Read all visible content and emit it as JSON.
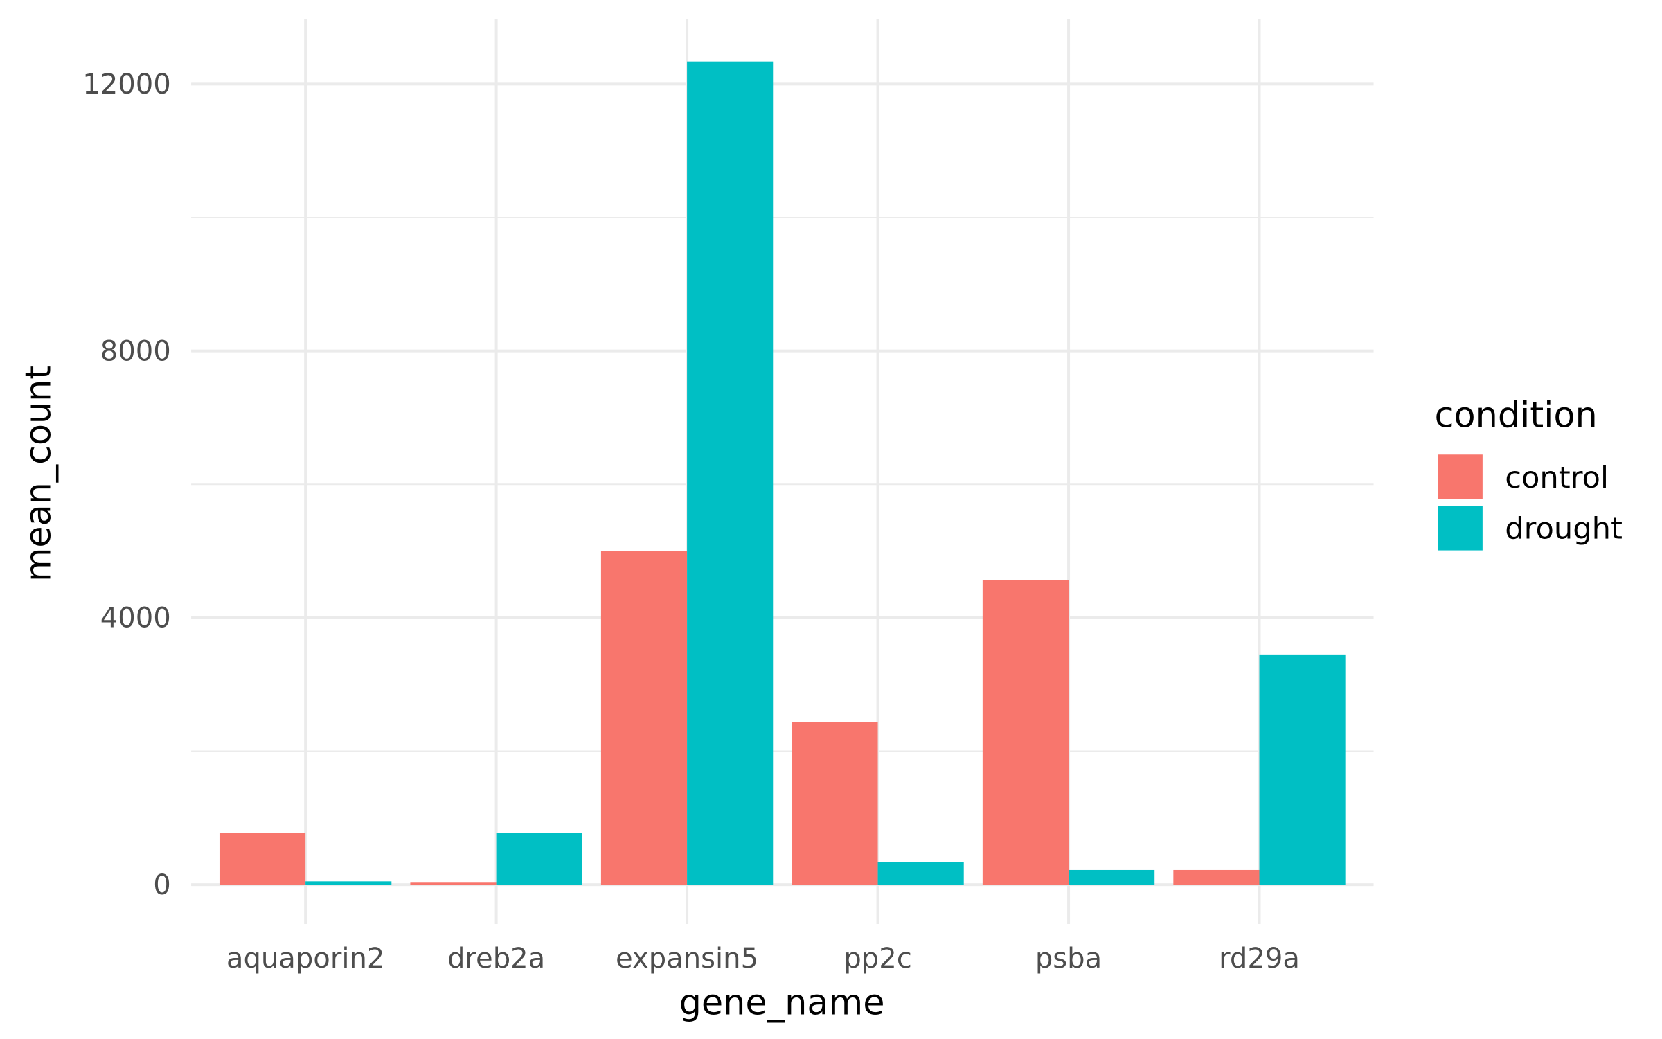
{
  "chart_data": {
    "type": "bar",
    "xlabel": "gene_name",
    "ylabel": "mean_count",
    "categories": [
      "aquaporin2",
      "dreb2a",
      "expansin5",
      "pp2c",
      "psba",
      "rd29a"
    ],
    "series": [
      {
        "name": "control",
        "color": "#F8766D",
        "values": [
          770,
          30,
          5000,
          2440,
          4560,
          220
        ]
      },
      {
        "name": "drought",
        "color": "#00BFC4",
        "values": [
          50,
          770,
          12340,
          340,
          220,
          3450
        ]
      }
    ],
    "ylim": [
      -600,
      13000
    ],
    "yticks": [
      0,
      4000,
      8000,
      12000
    ],
    "ytick_labels": [
      "0",
      "4000",
      "8000",
      "12000"
    ],
    "grid": true,
    "legend": {
      "title": "condition",
      "placement": "right"
    }
  }
}
